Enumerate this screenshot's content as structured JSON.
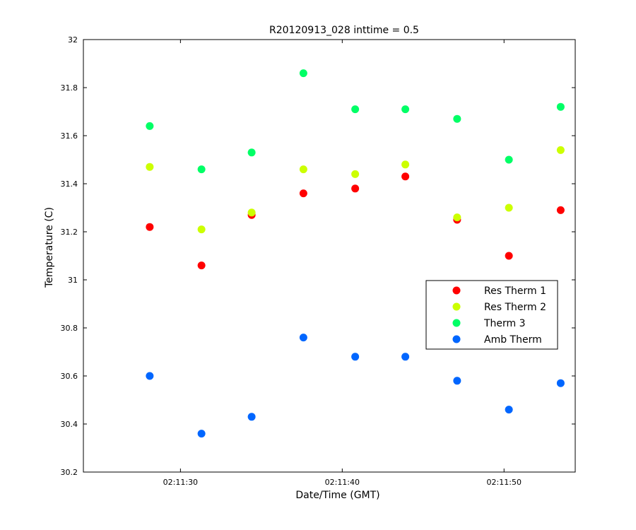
{
  "chart_data": {
    "type": "scatter",
    "title": "R20120913_028 inttime = 0.5",
    "xlabel": "Date/Time (GMT)",
    "ylabel": "Temperature (C)",
    "x_unit": "seconds past 02:11:00",
    "xlim": [
      24.0,
      54.4
    ],
    "ylim": [
      30.2,
      32.0
    ],
    "x_ticks": [
      30,
      40,
      50
    ],
    "x_tick_labels": [
      "02:11:30",
      "02:11:40",
      "02:11:50"
    ],
    "y_ticks": [
      30.2,
      30.4,
      30.6,
      30.8,
      31.0,
      31.2,
      31.4,
      31.6,
      31.8,
      32.0
    ],
    "y_tick_labels": [
      "30.2",
      "30.4",
      "30.6",
      "30.8",
      "31",
      "31.2",
      "31.4",
      "31.6",
      "31.8",
      "32"
    ],
    "x": [
      28.1,
      31.3,
      34.4,
      37.6,
      40.8,
      43.9,
      47.1,
      50.3,
      53.5
    ],
    "grid": false,
    "legend_position": "right",
    "series": [
      {
        "name": "Res Therm 1",
        "color": "#ff0000",
        "values": [
          31.22,
          31.06,
          31.27,
          31.36,
          31.38,
          31.43,
          31.25,
          31.1,
          31.29
        ]
      },
      {
        "name": "Res Therm 2",
        "color": "#ccff00",
        "values": [
          31.47,
          31.21,
          31.28,
          31.46,
          31.44,
          31.48,
          31.26,
          31.3,
          31.54
        ]
      },
      {
        "name": "Therm 3",
        "color": "#00ff66",
        "values": [
          31.64,
          31.46,
          31.53,
          31.86,
          31.71,
          31.71,
          31.67,
          31.5,
          31.72
        ]
      },
      {
        "name": "Amb Therm",
        "color": "#0066ff",
        "values": [
          30.6,
          30.36,
          30.43,
          30.76,
          30.68,
          30.68,
          30.58,
          30.46,
          30.57
        ]
      }
    ]
  }
}
